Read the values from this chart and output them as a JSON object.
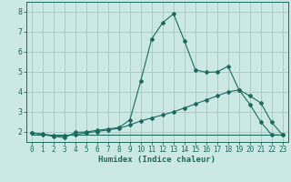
{
  "xlabel": "Humidex (Indice chaleur)",
  "ylabel": "",
  "background_color": "#cce8e4",
  "grid_color": "#99cccc",
  "line_color": "#1a6b5e",
  "xlim": [
    -0.5,
    23.5
  ],
  "ylim": [
    1.5,
    8.5
  ],
  "xticks": [
    0,
    1,
    2,
    3,
    4,
    5,
    6,
    7,
    8,
    9,
    10,
    11,
    12,
    13,
    14,
    15,
    16,
    17,
    18,
    19,
    20,
    21,
    22,
    23
  ],
  "yticks": [
    2,
    3,
    4,
    5,
    6,
    7,
    8
  ],
  "series": [
    {
      "x": [
        0,
        1,
        2,
        3,
        4,
        5,
        6,
        7,
        8,
        9,
        10,
        11,
        12,
        13,
        14,
        15,
        16,
        17,
        18,
        19,
        20,
        21,
        22,
        23
      ],
      "y": [
        1.95,
        1.88,
        1.78,
        1.72,
        1.98,
        2.0,
        2.08,
        2.15,
        2.22,
        2.6,
        4.55,
        6.65,
        7.45,
        7.9,
        6.55,
        5.1,
        4.98,
        5.0,
        5.28,
        4.1,
        3.38,
        2.5,
        1.85,
        1.85
      ],
      "marker": "D",
      "markersize": 2.0
    },
    {
      "x": [
        0,
        1,
        2,
        3,
        4,
        5,
        6,
        7,
        8,
        9,
        10,
        11,
        12,
        13,
        14,
        15,
        16,
        17,
        18,
        19,
        20,
        21,
        22,
        23
      ],
      "y": [
        1.95,
        1.9,
        1.82,
        1.8,
        1.88,
        1.95,
        2.02,
        2.1,
        2.18,
        2.35,
        2.55,
        2.7,
        2.85,
        3.0,
        3.2,
        3.4,
        3.6,
        3.8,
        4.0,
        4.1,
        3.8,
        3.45,
        2.48,
        1.85
      ],
      "marker": "D",
      "markersize": 2.0
    },
    {
      "x": [
        0,
        23
      ],
      "y": [
        1.85,
        1.85
      ],
      "marker": null,
      "markersize": 0
    }
  ]
}
